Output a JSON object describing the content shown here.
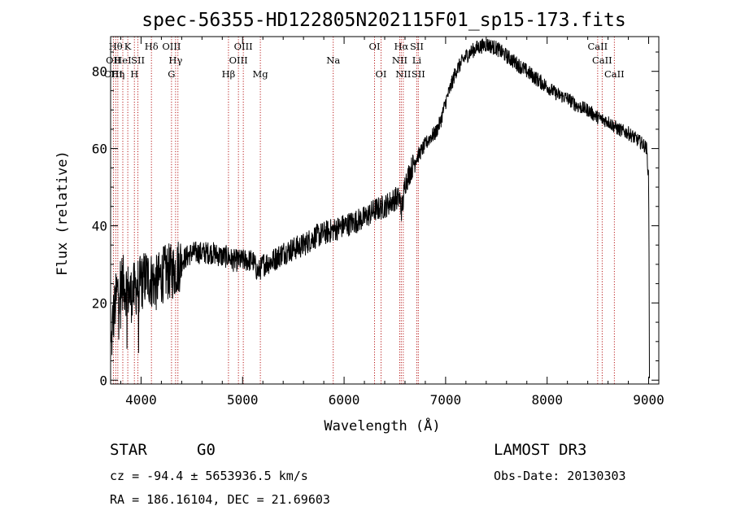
{
  "chart_data": {
    "type": "line",
    "title": "spec-56355-HD122805N202115F01_sp15-173.fits",
    "xlabel": "Wavelength (Å)",
    "ylabel": "Flux (relative)",
    "xlim": [
      3700,
      9100
    ],
    "ylim": [
      -1,
      89
    ],
    "xticks": [
      4000,
      5000,
      6000,
      7000,
      8000,
      9000
    ],
    "yticks": [
      0,
      20,
      40,
      60,
      80
    ],
    "spectrum_anchors": {
      "x": [
        3700,
        3720,
        3760,
        3800,
        3850,
        3900,
        3950,
        4000,
        4050,
        4100,
        4150,
        4200,
        4250,
        4300,
        4350,
        4400,
        4500,
        4600,
        4700,
        4800,
        4860,
        4900,
        5000,
        5100,
        5150,
        5180,
        5200,
        5300,
        5400,
        5500,
        5600,
        5700,
        5800,
        5900,
        6000,
        6100,
        6200,
        6300,
        6400,
        6450,
        6500,
        6550,
        6563,
        6580,
        6600,
        6650,
        6700,
        6750,
        6800,
        6850,
        6900,
        6950,
        7000,
        7050,
        7100,
        7200,
        7300,
        7400,
        7500,
        7600,
        7700,
        7800,
        7900,
        8000,
        8100,
        8200,
        8300,
        8400,
        8500,
        8600,
        8700,
        8800,
        8850,
        8900,
        8950,
        8980,
        9000,
        9010
      ],
      "y": [
        5,
        15,
        22,
        26,
        24,
        22,
        24,
        25,
        27,
        26,
        25,
        27,
        28,
        28,
        29,
        31,
        33,
        33,
        33,
        32,
        32,
        31,
        31,
        31,
        28,
        29,
        30,
        31,
        33,
        34,
        35,
        37,
        38,
        39,
        40,
        41,
        42,
        44,
        45,
        46,
        47,
        47,
        44,
        46,
        51,
        54,
        57,
        59,
        61,
        63,
        64,
        67,
        72,
        76,
        80,
        84,
        86,
        87,
        86,
        84,
        82,
        80,
        78,
        76,
        74,
        73,
        71,
        70,
        68,
        67,
        65,
        64,
        63,
        62,
        61,
        60,
        52,
        0
      ]
    },
    "spectral_lines": [
      {
        "x": 3750,
        "label": "Hθ",
        "row": 1
      },
      {
        "x": 3771,
        "label": "Hη",
        "row": 3
      },
      {
        "x": 3727,
        "label": "OII",
        "row": 2
      },
      {
        "x": 3727,
        "label": "OIII",
        "row": 3
      },
      {
        "x": 3820,
        "label": "HeI",
        "row": 2
      },
      {
        "x": 3869,
        "label": "K",
        "row": 1
      },
      {
        "x": 3934,
        "label": "H",
        "row": 3
      },
      {
        "x": 3969,
        "label": "SII",
        "row": 2
      },
      {
        "x": 4102,
        "label": "Hδ",
        "row": 1
      },
      {
        "x": 4300,
        "label": "OIII",
        "row": 1
      },
      {
        "x": 4300,
        "label": "G",
        "row": 3
      },
      {
        "x": 4340,
        "label": "Hγ",
        "row": 2
      },
      {
        "x": 4363,
        "label": "",
        "row": 0
      },
      {
        "x": 4861,
        "label": "Hβ",
        "row": 3
      },
      {
        "x": 4959,
        "label": "OIII",
        "row": 2
      },
      {
        "x": 5007,
        "label": "OIII",
        "row": 1
      },
      {
        "x": 5175,
        "label": "Mg",
        "row": 3
      },
      {
        "x": 5893,
        "label": "Na",
        "row": 2
      },
      {
        "x": 6300,
        "label": "OI",
        "row": 1
      },
      {
        "x": 6364,
        "label": "OI",
        "row": 3
      },
      {
        "x": 6548,
        "label": "NII",
        "row": 2
      },
      {
        "x": 6563,
        "label": "Hα",
        "row": 1
      },
      {
        "x": 6583,
        "label": "NII",
        "row": 3
      },
      {
        "x": 6716,
        "label": "SII",
        "row": 1
      },
      {
        "x": 6716,
        "label": "Li",
        "row": 2
      },
      {
        "x": 6731,
        "label": "SII",
        "row": 3
      },
      {
        "x": 8498,
        "label": "CaII",
        "row": 1
      },
      {
        "x": 8542,
        "label": "CaII",
        "row": 2
      },
      {
        "x": 8662,
        "label": "CaII",
        "row": 3
      }
    ],
    "info": {
      "object_class": "STAR",
      "subclass": "G0",
      "survey": "LAMOST DR3",
      "cz_line": "cz = -94.4 ± 5653936.5 km/s",
      "obs_date_line": "Obs-Date: 20130303",
      "radec_line": "RA = 186.16104, DEC =  21.69603"
    }
  }
}
